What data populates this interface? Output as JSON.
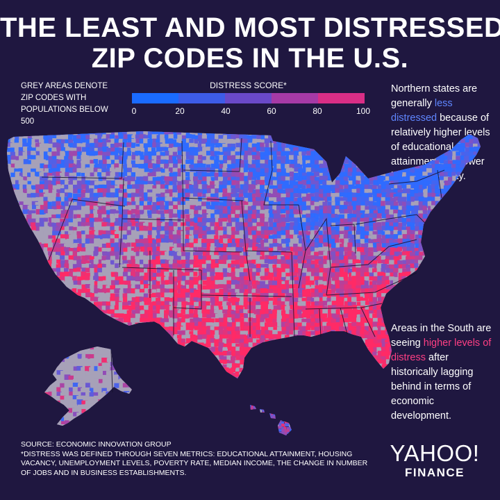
{
  "title": {
    "line1": "THE LEAST AND MOST DISTRESSED",
    "line2": "ZIP CODES IN THE U.S."
  },
  "grey_note": "GREY AREAS DENOTE ZIP CODES WITH POPULATIONS BELOW 500",
  "legend": {
    "title": "DISTRESS SCORE*",
    "ticks": [
      "0",
      "20",
      "40",
      "60",
      "80",
      "100"
    ],
    "colors": [
      "#1a6bff",
      "#3d5ce8",
      "#6a49c8",
      "#a63aa6",
      "#d92e86",
      "#ff2a66"
    ]
  },
  "colors": {
    "background": "#1f1740",
    "low_distress": "#2f6bff",
    "high_distress": "#ff2a66",
    "low_population": "#a7a1b8"
  },
  "annotations": {
    "north": {
      "pre": "Northern states are generally ",
      "highlight": "less distressed",
      "post": " because of relatively higher levels of educational attainment and lower levels of poverty."
    },
    "south": {
      "pre": "Areas in the South are seeing ",
      "highlight": "higher levels of distress",
      "post": " after historically lagging behind in terms of economic development."
    }
  },
  "source": {
    "line1": "SOURCE:  ECONOMIC INNOVATION GROUP",
    "line2": "*DISTRESS WAS DEFINED THROUGH SEVEN METRICS: EDUCATIONAL ATTAINMENT, HOUSING VACANCY, UNEMPLOYMENT LEVELS, POVERTY RATE, MEDIAN INCOME, THE CHANGE IN NUMBER OF JOBS AND IN BUSINESS ESTABLISHMENTS."
  },
  "logo": {
    "top": "YAHOO!",
    "bottom": "FINANCE"
  }
}
